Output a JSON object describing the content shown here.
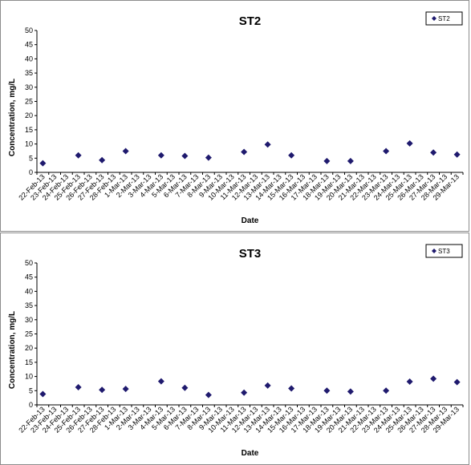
{
  "chart_data": [
    {
      "type": "scatter",
      "title": "ST2",
      "xlabel": "Date",
      "ylabel": "Concentration, mg/L",
      "ylim": [
        0,
        50
      ],
      "yticks": [
        0,
        5,
        10,
        15,
        20,
        25,
        30,
        35,
        40,
        45,
        50
      ],
      "grid": false,
      "legend": "top-right",
      "marker_color": "#1f1a6e",
      "categories": [
        "22-Feb-13",
        "23-Feb-13",
        "24-Feb-13",
        "25-Feb-13",
        "26-Feb-13",
        "27-Feb-13",
        "28-Feb-13",
        "1-Mar-13",
        "2-Mar-13",
        "3-Mar-13",
        "4-Mar-13",
        "5-Mar-13",
        "6-Mar-13",
        "7-Mar-13",
        "8-Mar-13",
        "9-Mar-13",
        "10-Mar-13",
        "11-Mar-13",
        "12-Mar-13",
        "13-Mar-13",
        "14-Mar-13",
        "15-Mar-13",
        "16-Mar-13",
        "17-Mar-13",
        "18-Mar-13",
        "19-Mar-13",
        "20-Mar-13",
        "21-Mar-13",
        "22-Mar-13",
        "23-Mar-13",
        "24-Mar-13",
        "25-Mar-13",
        "26-Mar-13",
        "27-Mar-13",
        "28-Mar-13",
        "29-Mar-13"
      ],
      "series": [
        {
          "name": "ST2",
          "values": [
            3.2,
            null,
            null,
            6.0,
            null,
            4.3,
            null,
            7.5,
            null,
            null,
            6.0,
            null,
            5.8,
            null,
            5.2,
            null,
            null,
            7.2,
            null,
            9.8,
            null,
            6.0,
            null,
            null,
            4.0,
            null,
            4.0,
            null,
            null,
            7.5,
            null,
            10.2,
            null,
            7.0,
            null,
            6.3
          ]
        }
      ]
    },
    {
      "type": "scatter",
      "title": "ST3",
      "xlabel": "Date",
      "ylabel": "Concentration, mg/L",
      "ylim": [
        0,
        50
      ],
      "yticks": [
        0,
        5,
        10,
        15,
        20,
        25,
        30,
        35,
        40,
        45,
        50
      ],
      "grid": false,
      "legend": "top-right",
      "marker_color": "#1f1a6e",
      "categories": [
        "22-Feb-13",
        "23-Feb-13",
        "24-Feb-13",
        "25-Feb-13",
        "26-Feb-13",
        "27-Feb-13",
        "28-Feb-13",
        "1-Mar-13",
        "2-Mar-13",
        "3-Mar-13",
        "4-Mar-13",
        "5-Mar-13",
        "6-Mar-13",
        "7-Mar-13",
        "8-Mar-13",
        "9-Mar-13",
        "10-Mar-13",
        "11-Mar-13",
        "12-Mar-13",
        "13-Mar-13",
        "14-Mar-13",
        "15-Mar-13",
        "16-Mar-13",
        "17-Mar-13",
        "18-Mar-13",
        "19-Mar-13",
        "20-Mar-13",
        "21-Mar-13",
        "22-Mar-13",
        "23-Mar-13",
        "24-Mar-13",
        "25-Mar-13",
        "26-Mar-13",
        "27-Mar-13",
        "28-Mar-13",
        "29-Mar-13"
      ],
      "series": [
        {
          "name": "ST3",
          "values": [
            3.8,
            null,
            null,
            6.2,
            null,
            5.3,
            null,
            5.6,
            null,
            null,
            8.3,
            null,
            6.0,
            null,
            3.5,
            null,
            null,
            4.3,
            null,
            6.8,
            null,
            5.8,
            null,
            null,
            5.0,
            null,
            4.7,
            null,
            null,
            5.0,
            null,
            8.2,
            null,
            9.2,
            null,
            8.0
          ]
        }
      ]
    }
  ]
}
